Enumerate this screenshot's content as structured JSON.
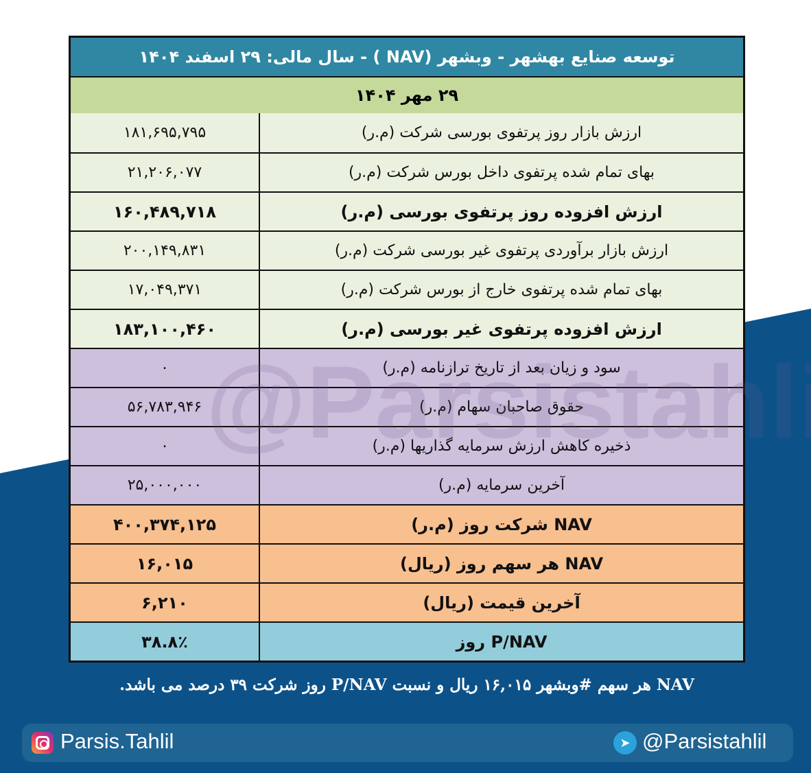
{
  "title": "توسعه صنایع بهشهر - وبشهر (NAV ) - سال مالی: ۲۹ اسفند ۱۴۰۴",
  "date": "۲۹ مهر ۱۴۰۴",
  "rows": [
    {
      "label": "ارزش بازار روز پرتفوی بورسی شرکت (م.ر)",
      "value": "۱۸۱,۶۹۵,۷۹۵",
      "bold": false,
      "color": "#ebf1df"
    },
    {
      "label": "بهای تمام شده پرتفوی داخل بورس شرکت (م.ر)",
      "value": "۲۱,۲۰۶,۰۷۷",
      "bold": false,
      "color": "#ebf1df"
    },
    {
      "label": "ارزش افزوده روز پرتفوی بورسی (م.ر)",
      "value": "۱۶۰,۴۸۹,۷۱۸",
      "bold": true,
      "color": "#ebf1df"
    },
    {
      "label": "ارزش بازار برآوردی پرتفوی غیر بورسی شرکت (م.ر)",
      "value": "۲۰۰,۱۴۹,۸۳۱",
      "bold": false,
      "color": "#ebf1df"
    },
    {
      "label": "بهای تمام شده پرتفوی خارج از بورس شرکت (م.ر)",
      "value": "۱۷,۰۴۹,۳۷۱",
      "bold": false,
      "color": "#ebf1df"
    },
    {
      "label": "ارزش افزوده پرتفوی غیر بورسی (م.ر)",
      "value": "۱۸۳,۱۰۰,۴۶۰",
      "bold": true,
      "color": "#ebf1df"
    },
    {
      "label": "سود و زیان بعد از تاریخ ترازنامه (م.ر)",
      "value": "۰",
      "bold": false,
      "color": "#cdc0dd"
    },
    {
      "label": "حقوق صاحبان سهام (م.ر)",
      "value": "۵۶,۷۸۳,۹۴۶",
      "bold": false,
      "color": "#cdc0dd"
    },
    {
      "label": "ذخیره کاهش ارزش سرمایه گذاریها (م.ر)",
      "value": "۰",
      "bold": false,
      "color": "#cdc0dd"
    },
    {
      "label": "آخرین سرمایه (م.ر)",
      "value": "۲۵,۰۰۰,۰۰۰",
      "bold": false,
      "color": "#cdc0dd"
    },
    {
      "label": "NAV  شرکت روز (م.ر)",
      "value": "۴۰۰,۳۷۴,۱۲۵",
      "bold": true,
      "color": "#f8bf8f"
    },
    {
      "label": "NAV  هر سهم روز (ریال)",
      "value": "۱۶,۰۱۵",
      "bold": true,
      "color": "#f8bf8f"
    },
    {
      "label": "آخرین قیمت (ریال)",
      "value": "۶,۲۱۰",
      "bold": true,
      "color": "#f8bf8f"
    },
    {
      "label": "P/NAV روز",
      "value": "۳۸.۸٪",
      "bold": true,
      "color": "#93cddc"
    }
  ],
  "watermark": "@Parsistahlil",
  "summary": "NAV هر سهم #وبشهر ۱۶,۰۱۵ ریال و نسبت P/NAV روز شرکت ۳۹ درصد می باشد.",
  "footer": {
    "instagram": "Parsis.Tahlil",
    "telegram": "@Parsistahlil"
  }
}
